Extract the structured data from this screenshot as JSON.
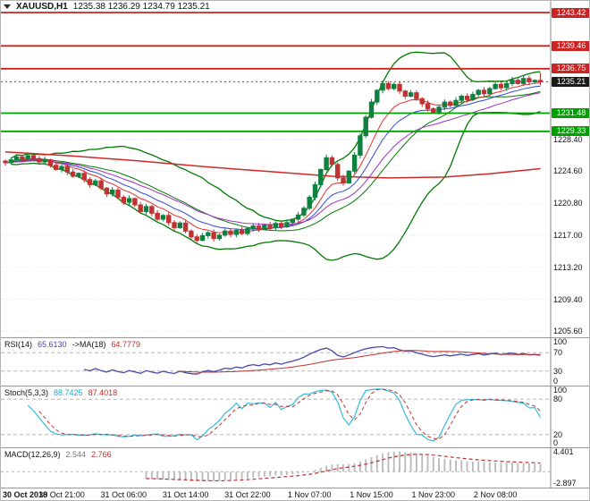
{
  "window": {
    "symbol_period": "XAUUSD,H1",
    "ohlc": "1235.38 1236.29 1234.79 1235.21"
  },
  "chart_data": {
    "type": "candlestick",
    "symbol": "XAUUSD",
    "timeframe": "H1",
    "current": {
      "open": 1235.38,
      "high": 1236.29,
      "low": 1234.79,
      "close": 1235.21
    },
    "price_range": {
      "min": 1205.0,
      "max": 1244.8
    },
    "closes": [
      1225.6,
      1225.95,
      1226.3,
      1226.05,
      1226.45,
      1226.1,
      1225.7,
      1225.95,
      1225.3,
      1224.8,
      1225.15,
      1224.5,
      1224.0,
      1224.35,
      1223.6,
      1223.0,
      1223.45,
      1222.6,
      1221.9,
      1222.35,
      1221.5,
      1220.9,
      1221.35,
      1220.6,
      1219.8,
      1220.4,
      1219.6,
      1218.9,
      1219.35,
      1218.5,
      1217.9,
      1218.45,
      1217.5,
      1216.8,
      1216.4,
      1216.95,
      1217.3,
      1216.6,
      1217.0,
      1217.5,
      1217.1,
      1217.6,
      1217.2,
      1217.8,
      1218.1,
      1217.7,
      1218.2,
      1217.9,
      1218.4,
      1218.0,
      1218.5,
      1218.9,
      1219.4,
      1220.2,
      1221.5,
      1223.0,
      1224.8,
      1226.2,
      1225.4,
      1223.8,
      1223.2,
      1224.6,
      1226.5,
      1228.8,
      1231.0,
      1232.8,
      1234.2,
      1235.0,
      1234.4,
      1234.9,
      1234.1,
      1233.5,
      1233.9,
      1233.2,
      1232.6,
      1232.0,
      1231.6,
      1232.2,
      1232.8,
      1232.4,
      1233.0,
      1233.5,
      1233.1,
      1233.7,
      1234.2,
      1233.8,
      1234.4,
      1234.9,
      1234.5,
      1235.0,
      1235.4,
      1235.0,
      1235.6,
      1235.2,
      1235.38,
      1235.21
    ],
    "levels": [
      {
        "price": 1243.42,
        "label": "1243.42",
        "color": "#cc2222",
        "style": "solid",
        "badge": "#cc2222"
      },
      {
        "price": 1239.46,
        "label": "1239.46",
        "color": "#cc2222",
        "style": "solid",
        "badge": "#cc2222"
      },
      {
        "price": 1236.75,
        "label": "1236.75",
        "color": "#cc2222",
        "style": "solid",
        "badge": "#cc2222"
      },
      {
        "price": 1235.21,
        "label": "1235.21",
        "color": "#cc2222",
        "style": "dotted",
        "badge": "#1a1a1a"
      },
      {
        "price": 1231.48,
        "label": "1231.48",
        "color": "#00a000",
        "style": "solid",
        "badge": "#00a000"
      },
      {
        "price": 1229.33,
        "label": "1229.33",
        "color": "#00a000",
        "style": "solid",
        "badge": "#00a000"
      }
    ],
    "price_ticks": [
      {
        "value": 1228.4,
        "label": "1228.40"
      },
      {
        "value": 1224.6,
        "label": "1224.60"
      },
      {
        "value": 1220.8,
        "label": "1220.80"
      },
      {
        "value": 1217.0,
        "label": "1217.00"
      },
      {
        "value": 1213.2,
        "label": "1213.20"
      },
      {
        "value": 1209.4,
        "label": "1209.40"
      },
      {
        "value": 1205.6,
        "label": "1205.60"
      }
    ],
    "bollinger": {
      "period": 20,
      "deviation": 2,
      "color": "#007a00"
    },
    "ma_ribbon": [
      {
        "period": 8,
        "color": "#e03030"
      },
      {
        "period": 13,
        "color": "#3048d0"
      },
      {
        "period": 21,
        "color": "#a030c0"
      }
    ],
    "slow_ma_points": [
      [
        0,
        1226.9
      ],
      [
        12,
        1226.4
      ],
      [
        24,
        1225.8
      ],
      [
        36,
        1225.1
      ],
      [
        48,
        1224.5
      ],
      [
        58,
        1224.0
      ],
      [
        68,
        1223.8
      ],
      [
        78,
        1223.9
      ],
      [
        86,
        1224.3
      ],
      [
        95,
        1224.9
      ]
    ],
    "time_labels": [
      {
        "index": 0,
        "label": "30 Oct 2018"
      },
      {
        "index": 10,
        "label": "30 Oct 21:00"
      },
      {
        "index": 21,
        "label": "31 Oct 06:00"
      },
      {
        "index": 32,
        "label": "31 Oct 14:00"
      },
      {
        "index": 43,
        "label": "31 Oct 22:00"
      },
      {
        "index": 54,
        "label": "1 Nov 07:00"
      },
      {
        "index": 65,
        "label": "1 Nov 15:00"
      },
      {
        "index": 76,
        "label": "1 Nov 23:00"
      },
      {
        "index": 87,
        "label": "2 Nov 08:00"
      }
    ],
    "indicators": {
      "rsi": {
        "name": "RSI(14)",
        "value": "65.6130",
        "ma_name": "->MA(18)",
        "ma_value": "64.7779",
        "period": 14,
        "ma_period": 18,
        "levels": [
          70,
          30
        ],
        "axis_labels": [
          {
            "value": 100,
            "text": "100"
          },
          {
            "value": 70,
            "text": "70"
          },
          {
            "value": 30,
            "text": "30"
          },
          {
            "value": 0,
            "text": "0"
          }
        ],
        "line_color": "#4848a8",
        "ma_color": "#c03030"
      },
      "stoch": {
        "name": "Stoch(5,3,3)",
        "k_value": "88.7425",
        "d_value": "87.4018",
        "k_period": 5,
        "slowing": 3,
        "d_period": 3,
        "levels": [
          80,
          20
        ],
        "axis_labels": [
          {
            "value": 100,
            "text": "100"
          },
          {
            "value": 80,
            "text": "80"
          },
          {
            "value": 20,
            "text": "20"
          },
          {
            "value": 0,
            "text": "0"
          }
        ],
        "k_color": "#33bbdd",
        "d_color": "#c03030"
      },
      "macd": {
        "name": "MACD(12,26,9)",
        "value": "2.544",
        "signal_value": "2.766",
        "fast": 12,
        "slow": 26,
        "signal": 9,
        "range": {
          "min": -2.897,
          "max": 4.401
        },
        "axis_labels": [
          {
            "value": 4.401,
            "text": "4.401"
          },
          {
            "value": -2.897,
            "text": "-2.897"
          }
        ],
        "hist_color": "#b8b8b8",
        "signal_color": "#c03030"
      }
    },
    "style": {
      "grid": "#e3e3e3",
      "candle_up": "#0f8040",
      "candle_down": "#c03333",
      "slow_ma": "#d02828",
      "ind_level": "#b5b5b5",
      "separator": "#999999",
      "axis_border": "#888888"
    }
  }
}
